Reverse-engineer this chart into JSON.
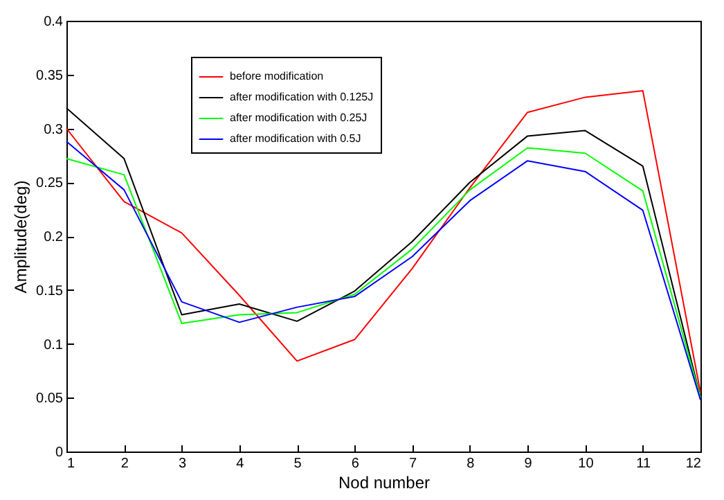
{
  "chart_data": {
    "type": "line",
    "xlabel": "Nod number",
    "ylabel": "Amplitude(deg)",
    "x": [
      1,
      2,
      3,
      4,
      5,
      6,
      7,
      8,
      9,
      10,
      11,
      12
    ],
    "xlim": [
      1,
      12
    ],
    "xticks": [
      1,
      2,
      3,
      4,
      5,
      6,
      7,
      8,
      9,
      10,
      11,
      12
    ],
    "ylim": [
      0,
      0.4
    ],
    "yticks": [
      0,
      0.05,
      0.1,
      0.15,
      0.2,
      0.25,
      0.3,
      0.35,
      0.4
    ],
    "grid": false,
    "legend": "top left",
    "marker": "none",
    "line_style": "solid",
    "series": [
      {
        "name": "before modification",
        "color": "#ff0000",
        "values": [
          0.3,
          0.232,
          0.203,
          0.145,
          0.084,
          0.104,
          0.17,
          0.245,
          0.315,
          0.329,
          0.335,
          0.055
        ]
      },
      {
        "name": "after modification with 0.125J",
        "color": "#000000",
        "values": [
          0.319,
          0.272,
          0.127,
          0.137,
          0.121,
          0.149,
          0.195,
          0.25,
          0.293,
          0.298,
          0.265,
          0.05
        ]
      },
      {
        "name": "after modification with 0.25J",
        "color": "#00ff00",
        "values": [
          0.272,
          0.257,
          0.119,
          0.127,
          0.129,
          0.146,
          0.188,
          0.243,
          0.282,
          0.277,
          0.242,
          0.05
        ]
      },
      {
        "name": "after modification with 0.5J",
        "color": "#0000ff",
        "values": [
          0.288,
          0.243,
          0.139,
          0.12,
          0.134,
          0.144,
          0.181,
          0.233,
          0.27,
          0.26,
          0.224,
          0.048
        ]
      }
    ]
  }
}
